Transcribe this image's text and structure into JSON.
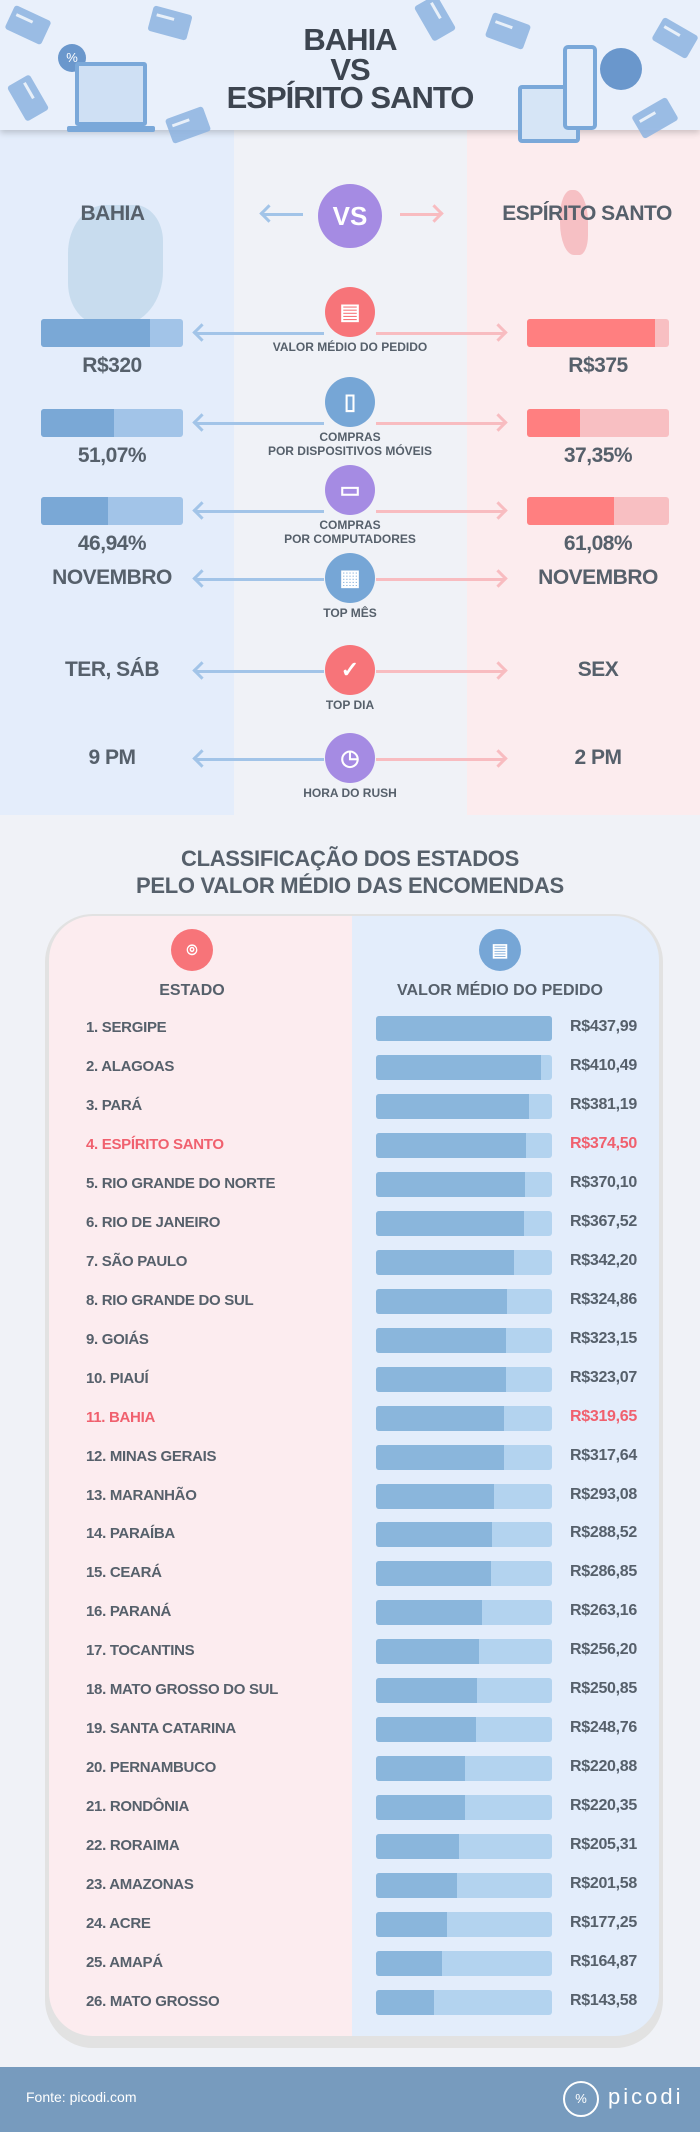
{
  "header": {
    "title_lines": [
      "BAHIA",
      "VS",
      "ESPÍRITO SANTO"
    ]
  },
  "comparison": {
    "left_state": "BAHIA",
    "right_state": "ESPÍRITO SANTO",
    "vs_label": "VS",
    "colors": {
      "left_dark": "#7aa8d6",
      "left_light": "#a2c4e8",
      "right_dark": "#ff7f80",
      "right_light": "#f8bfc2"
    },
    "rows": [
      {
        "label": [
          "VALOR MÉDIO DO PEDIDO"
        ],
        "icon": "receipt-icon",
        "icon_color": "#f77479",
        "left": "R$320",
        "right": "R$375",
        "left_fill": 0.77,
        "right_fill": 0.9
      },
      {
        "label": [
          "COMPRAS",
          "POR DISPOSITIVOS MÓVEIS"
        ],
        "icon": "smartphone-icon",
        "icon_color": "#76a6d6",
        "left": "51,07%",
        "right": "37,35%",
        "left_fill": 0.5107,
        "right_fill": 0.3735
      },
      {
        "label": [
          "COMPRAS",
          "POR COMPUTADORES"
        ],
        "icon": "laptop-icon",
        "icon_color": "#a58be3",
        "left": "46,94%",
        "right": "61,08%",
        "left_fill": 0.4694,
        "right_fill": 0.6108
      },
      {
        "label": [
          "TOP MÊS"
        ],
        "icon": "calendar-icon",
        "icon_color": "#76a6d6",
        "left": "NOVEMBRO",
        "right": "NOVEMBRO"
      },
      {
        "label": [
          "TOP DIA"
        ],
        "icon": "calendar-check-icon",
        "icon_color": "#f77479",
        "left": "TER, SÁB",
        "right": "SEX"
      },
      {
        "label": [
          "HORA DO RUSH"
        ],
        "icon": "clock-icon",
        "icon_color": "#a58be3",
        "left": "9 PM",
        "right": "2 PM"
      }
    ]
  },
  "ranking": {
    "title_lines": [
      "CLASSIFICAÇÃO DOS ESTADOS",
      "PELO VALOR MÉDIO DAS ENCOMENDAS"
    ],
    "col_state": "ESTADO",
    "col_value": "VALOR MÉDIO DO PEDIDO",
    "highlight_color": "#f0606e",
    "rows": [
      {
        "name": "1. SERGIPE",
        "value": "R$437,99",
        "amount": 437.99
      },
      {
        "name": "2. ALAGOAS",
        "value": "R$410,49",
        "amount": 410.49
      },
      {
        "name": "3. PARÁ",
        "value": "R$381,19",
        "amount": 381.19
      },
      {
        "name": "4. ESPÍRITO SANTO",
        "value": "R$374,50",
        "amount": 374.5,
        "highlight": true
      },
      {
        "name": "5. RIO GRANDE DO NORTE",
        "value": "R$370,10",
        "amount": 370.1
      },
      {
        "name": "6. RIO DE JANEIRO",
        "value": "R$367,52",
        "amount": 367.52
      },
      {
        "name": "7. SÃO PAULO",
        "value": "R$342,20",
        "amount": 342.2
      },
      {
        "name": "8. RIO GRANDE DO SUL",
        "value": "R$324,86",
        "amount": 324.86
      },
      {
        "name": "9. GOIÁS",
        "value": "R$323,15",
        "amount": 323.15
      },
      {
        "name": "10. PIAUÍ",
        "value": "R$323,07",
        "amount": 323.07
      },
      {
        "name": "11. BAHIA",
        "value": "R$319,65",
        "amount": 319.65,
        "highlight": true
      },
      {
        "name": "12. MINAS GERAIS",
        "value": "R$317,64",
        "amount": 317.64
      },
      {
        "name": "13. MARANHÃO",
        "value": "R$293,08",
        "amount": 293.08
      },
      {
        "name": "14. PARAÍBA",
        "value": "R$288,52",
        "amount": 288.52
      },
      {
        "name": "15. CEARÁ",
        "value": "R$286,85",
        "amount": 286.85
      },
      {
        "name": "16. PARANÁ",
        "value": "R$263,16",
        "amount": 263.16
      },
      {
        "name": "17. TOCANTINS",
        "value": "R$256,20",
        "amount": 256.2
      },
      {
        "name": "18. MATO GROSSO DO SUL",
        "value": "R$250,85",
        "amount": 250.85
      },
      {
        "name": "19. SANTA CATARINA",
        "value": "R$248,76",
        "amount": 248.76
      },
      {
        "name": "20. PERNAMBUCO",
        "value": "R$220,88",
        "amount": 220.88
      },
      {
        "name": "21. RONDÔNIA",
        "value": "R$220,35",
        "amount": 220.35
      },
      {
        "name": "22. RORAIMA",
        "value": "R$205,31",
        "amount": 205.31
      },
      {
        "name": "23. AMAZONAS",
        "value": "R$201,58",
        "amount": 201.58
      },
      {
        "name": "24. ACRE",
        "value": "R$177,25",
        "amount": 177.25
      },
      {
        "name": "25. AMAPÁ",
        "value": "R$164,87",
        "amount": 164.87
      },
      {
        "name": "26. MATO GROSSO",
        "value": "R$143,58",
        "amount": 143.58
      }
    ]
  },
  "footer": {
    "source": "Fonte: picodi.com",
    "logo": "picodi"
  }
}
